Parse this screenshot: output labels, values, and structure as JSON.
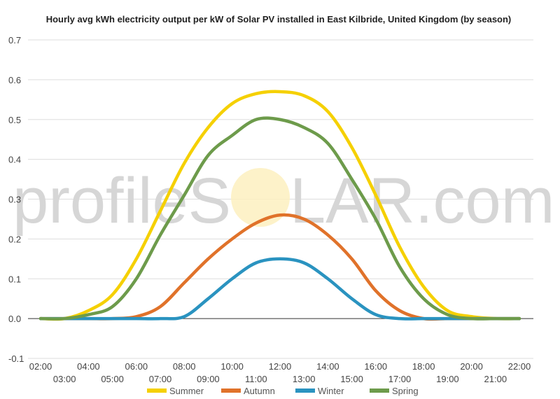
{
  "chart_data": {
    "type": "line",
    "title": "Hourly avg kWh electricity output per kW of Solar PV installed in East Kilbride, United Kingdom (by season)",
    "xlabel": "",
    "ylabel": "",
    "ylim": [
      -0.1,
      0.7
    ],
    "yticks": [
      "0.7",
      "0.6",
      "0.5",
      "0.4",
      "0.3",
      "0.2",
      "0.1",
      "0.0",
      "-0.1"
    ],
    "ytick_values": [
      0.7,
      0.6,
      0.5,
      0.4,
      0.3,
      0.2,
      0.1,
      0.0,
      -0.1
    ],
    "x": [
      "02:00",
      "03:00",
      "04:00",
      "05:00",
      "06:00",
      "07:00",
      "08:00",
      "09:00",
      "10:00",
      "11:00",
      "12:00",
      "13:00",
      "14:00",
      "15:00",
      "16:00",
      "17:00",
      "18:00",
      "19:00",
      "20:00",
      "21:00",
      "22:00"
    ],
    "grid": true,
    "legend_position": "bottom",
    "series": [
      {
        "name": "Summer",
        "color": "#f5d000",
        "values": [
          0.0,
          0.0,
          0.02,
          0.06,
          0.15,
          0.27,
          0.39,
          0.48,
          0.54,
          0.565,
          0.57,
          0.56,
          0.52,
          0.43,
          0.31,
          0.18,
          0.08,
          0.02,
          0.005,
          0.0,
          0.0
        ]
      },
      {
        "name": "Autumn",
        "color": "#e0722a",
        "values": [
          0.0,
          0.0,
          0.0,
          0.0,
          0.005,
          0.03,
          0.09,
          0.15,
          0.2,
          0.24,
          0.26,
          0.25,
          0.21,
          0.15,
          0.07,
          0.02,
          0.0,
          0.0,
          0.0,
          0.0,
          0.0
        ]
      },
      {
        "name": "Winter",
        "color": "#2a93c0",
        "values": [
          0.0,
          0.0,
          0.0,
          0.0,
          0.0,
          0.0,
          0.005,
          0.05,
          0.1,
          0.14,
          0.15,
          0.14,
          0.1,
          0.05,
          0.01,
          0.0,
          0.0,
          0.0,
          0.0,
          0.0,
          0.0
        ]
      },
      {
        "name": "Spring",
        "color": "#6d9b4b",
        "values": [
          0.0,
          0.0,
          0.01,
          0.03,
          0.1,
          0.21,
          0.31,
          0.41,
          0.46,
          0.5,
          0.5,
          0.48,
          0.44,
          0.35,
          0.25,
          0.13,
          0.05,
          0.01,
          0.0,
          0.0,
          0.0
        ]
      }
    ]
  },
  "watermark": {
    "left": "profileS",
    "right": "LAR.com"
  }
}
